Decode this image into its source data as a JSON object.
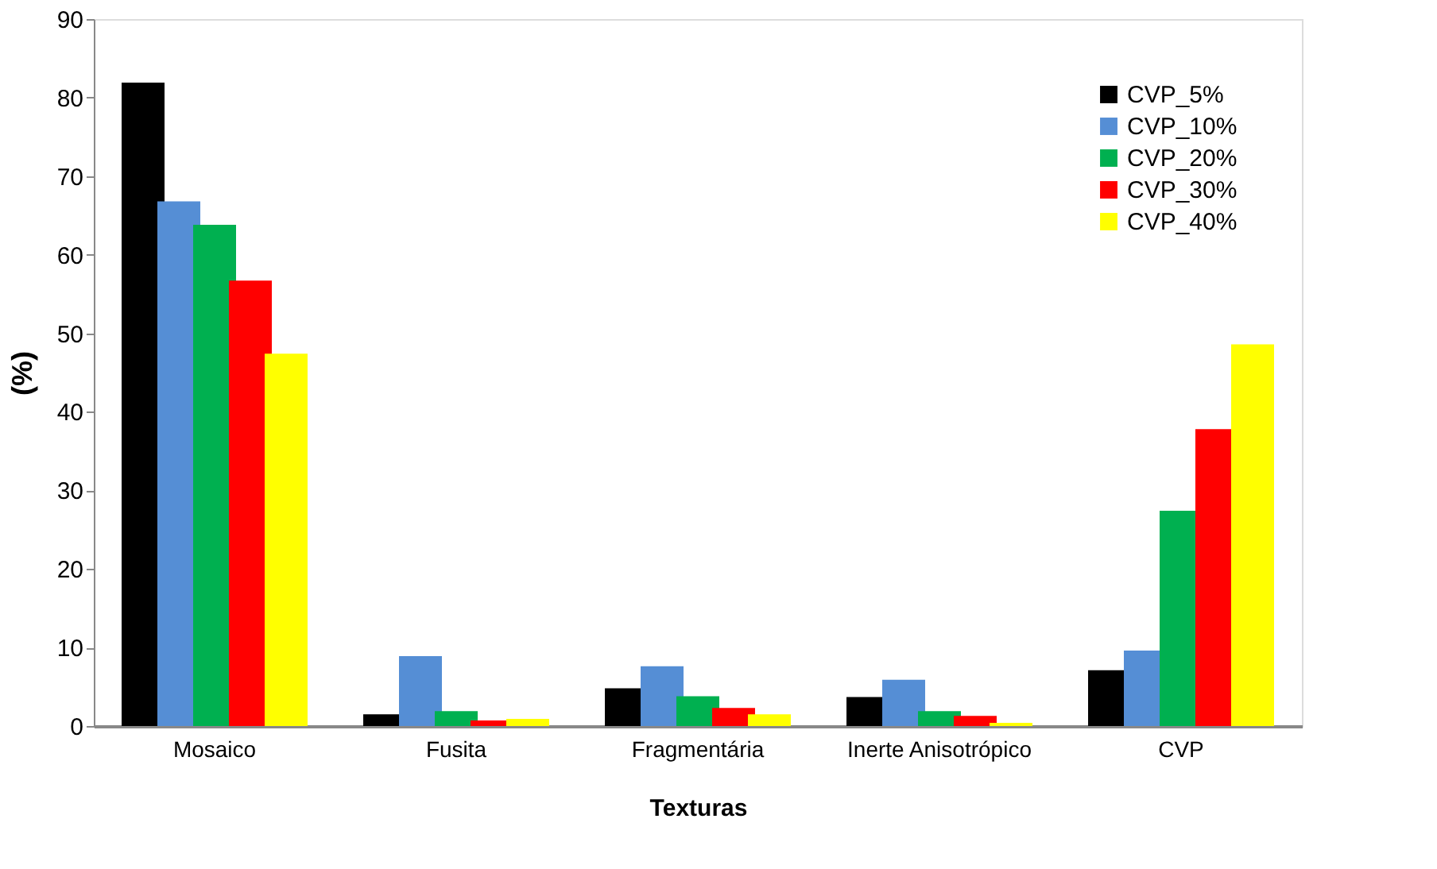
{
  "chart_data": {
    "type": "bar",
    "xlabel": "Texturas",
    "ylabel": "(%)",
    "categories": [
      "Mosaico",
      "Fusita",
      "Fragmentária",
      "Inerte Anisotrópico",
      "CVP"
    ],
    "series": [
      {
        "name": "CVP_5%",
        "color": "#000000",
        "values": [
          81.9,
          1.5,
          4.8,
          3.7,
          7.1
        ]
      },
      {
        "name": "CVP_10%",
        "color": "#558ed5",
        "values": [
          66.8,
          8.9,
          7.6,
          5.9,
          9.6
        ]
      },
      {
        "name": "CVP_20%",
        "color": "#00b050",
        "values": [
          63.8,
          1.9,
          3.8,
          1.9,
          27.4
        ]
      },
      {
        "name": "CVP_30%",
        "color": "#ff0000",
        "values": [
          56.7,
          0.7,
          2.3,
          1.3,
          37.8
        ]
      },
      {
        "name": "CVP_40%",
        "color": "#ffff00",
        "values": [
          47.4,
          0.9,
          1.5,
          0.4,
          48.6
        ]
      }
    ],
    "ylim": [
      0,
      90
    ],
    "yticks": [
      0,
      10,
      20,
      30,
      40,
      50,
      60,
      70,
      80,
      90
    ],
    "grid": false,
    "legend": "top right"
  }
}
